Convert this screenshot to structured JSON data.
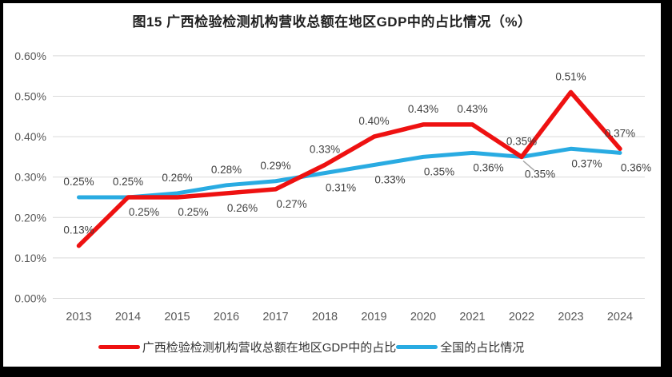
{
  "chart_data": {
    "type": "line",
    "title": "图15 广西检验检测机构营收总额在地区GDP中的占比情况（%）",
    "categories": [
      "2013",
      "2014",
      "2015",
      "2016",
      "2017",
      "2018",
      "2019",
      "2020",
      "2021",
      "2022",
      "2023",
      "2024"
    ],
    "series": [
      {
        "name": "广西检验检测机构营收总额在地区GDP中的占比",
        "color": "#ee1111",
        "values": [
          0.13,
          0.25,
          0.25,
          0.26,
          0.27,
          0.33,
          0.4,
          0.43,
          0.43,
          0.35,
          0.51,
          0.37
        ],
        "labels": [
          "0.13%",
          "0.25%",
          "0.25%",
          "0.26%",
          "0.27%",
          "0.33%",
          "0.40%",
          "0.43%",
          "0.43%",
          "0.35%",
          "0.51%",
          "0.37%"
        ],
        "label_pos": [
          "above",
          "below",
          "below",
          "below",
          "below",
          "above",
          "above",
          "above",
          "above",
          "below-leader",
          "above",
          "above"
        ]
      },
      {
        "name": "全国的占比情况",
        "color": "#29abe2",
        "values": [
          0.25,
          0.25,
          0.26,
          0.28,
          0.29,
          0.31,
          0.33,
          0.35,
          0.36,
          0.35,
          0.37,
          0.36
        ],
        "labels": [
          "0.25%",
          "0.25%",
          "0.26%",
          "0.28%",
          "0.29%",
          "0.31%",
          "0.33%",
          "0.35%",
          "0.36%",
          "0.35%",
          "0.37%",
          "0.36%"
        ],
        "label_pos": [
          "above",
          "above",
          "above",
          "above",
          "above",
          "below",
          "below",
          "below",
          "below",
          "above",
          "below",
          "below"
        ]
      }
    ],
    "y_axis": {
      "tick_labels": [
        "0.00%",
        "0.10%",
        "0.20%",
        "0.30%",
        "0.40%",
        "0.50%",
        "0.60%"
      ],
      "min": 0.0,
      "max": 0.6
    },
    "grid": true,
    "legend_position": "bottom",
    "colors": {
      "grid": "#d9d9d9",
      "tick_text": "#595959",
      "data_label_text": "#3f3f3f",
      "leader_line": "#a6a6a6"
    }
  }
}
